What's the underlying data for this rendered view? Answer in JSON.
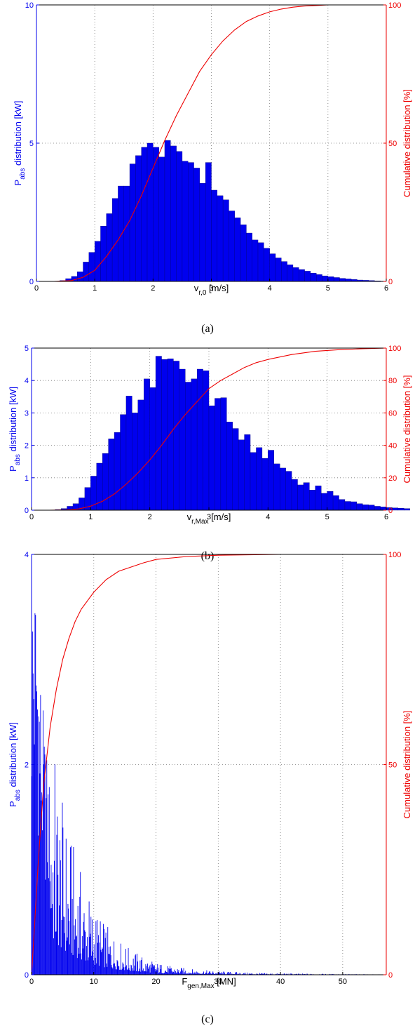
{
  "chart_data": [
    {
      "type": "bar",
      "caption": "(a)",
      "x_ticks": [
        "0",
        "1",
        "2",
        "3",
        "4",
        "5",
        "6"
      ],
      "xlim": [
        0,
        6
      ],
      "ylim_left": [
        0,
        10
      ],
      "y_ticks_left": [
        "0",
        "5",
        "10"
      ],
      "ylim_right": [
        0,
        100
      ],
      "y_ticks_right": [
        "0",
        "50",
        "100"
      ],
      "xlabel": {
        "main": "v",
        "sub": "r,0",
        "unit": " [m/s]"
      },
      "ylabel_left": {
        "main": "P",
        "sub": "abs",
        "rest": " distribution [kW]"
      },
      "ylabel_right": "Cumulative distribution [%]",
      "grid": true,
      "bar_color": "#0000ee",
      "cdf_color": "#ee0000",
      "bin_width": 0.1,
      "bin_start": 0.4,
      "values": [
        0.03,
        0.1,
        0.18,
        0.35,
        0.7,
        1.05,
        1.45,
        2.0,
        2.45,
        3.0,
        3.45,
        3.45,
        4.25,
        4.55,
        4.85,
        5.0,
        4.85,
        4.5,
        5.1,
        4.9,
        4.7,
        4.35,
        4.3,
        4.1,
        3.55,
        4.3,
        3.3,
        3.1,
        2.95,
        2.55,
        2.3,
        2.05,
        1.75,
        1.5,
        1.4,
        1.2,
        1.0,
        0.85,
        0.72,
        0.6,
        0.5,
        0.43,
        0.37,
        0.3,
        0.25,
        0.2,
        0.17,
        0.14,
        0.11,
        0.09,
        0.07,
        0.05,
        0.04,
        0.03,
        0.02,
        0.01
      ],
      "cdf": {
        "x": [
          0.3,
          0.6,
          0.8,
          1.0,
          1.2,
          1.4,
          1.6,
          1.8,
          2.0,
          2.2,
          2.4,
          2.6,
          2.8,
          3.0,
          3.2,
          3.4,
          3.6,
          3.8,
          4.0,
          4.2,
          4.4,
          4.6,
          4.8,
          5.0,
          5.5,
          6.0
        ],
        "y": [
          0,
          0.3,
          1.5,
          4,
          9,
          15,
          22,
          31,
          41,
          51,
          60,
          68,
          76,
          82,
          87,
          91,
          94,
          96,
          97.5,
          98.5,
          99.2,
          99.6,
          99.8,
          100,
          100,
          100
        ]
      }
    },
    {
      "type": "bar",
      "caption": "(b)",
      "x_ticks": [
        "0",
        "1",
        "2",
        "3",
        "4",
        "5",
        "6"
      ],
      "xlim": [
        0,
        6
      ],
      "ylim_left": [
        0,
        5
      ],
      "y_ticks_left": [
        "0",
        "1",
        "2",
        "3",
        "4",
        "5"
      ],
      "ylim_right": [
        0,
        100
      ],
      "y_ticks_right": [
        "0",
        "20",
        "40",
        "60",
        "80",
        "100"
      ],
      "xlabel": {
        "main": "v",
        "sub": "r,Max",
        "unit": " [m/s]"
      },
      "ylabel_left": {
        "main": "P",
        "sub": "abs",
        "rest": " distribution [kW]"
      },
      "ylabel_right": "Cumulative distribution [%]",
      "grid": true,
      "bar_color": "#0000ee",
      "cdf_color": "#ee0000",
      "bin_width": 0.1,
      "bin_start": 0.4,
      "values": [
        0.02,
        0.05,
        0.12,
        0.2,
        0.38,
        0.7,
        1.05,
        1.45,
        1.75,
        2.2,
        2.4,
        2.95,
        3.52,
        3.0,
        3.4,
        4.05,
        3.78,
        4.75,
        4.65,
        4.67,
        4.6,
        4.35,
        3.95,
        4.05,
        4.35,
        4.3,
        3.22,
        3.45,
        3.47,
        2.72,
        2.52,
        2.17,
        2.33,
        1.78,
        1.93,
        1.6,
        1.85,
        1.43,
        1.3,
        1.2,
        0.95,
        0.78,
        0.85,
        0.62,
        0.75,
        0.52,
        0.58,
        0.45,
        0.33,
        0.27,
        0.26,
        0.2,
        0.17,
        0.16,
        0.12,
        0.1,
        0.08,
        0.07,
        0.06,
        0.05
      ],
      "cdf": {
        "x": [
          0.3,
          0.6,
          0.8,
          1.0,
          1.2,
          1.4,
          1.6,
          1.8,
          2.0,
          2.2,
          2.4,
          2.6,
          2.8,
          3.0,
          3.2,
          3.4,
          3.6,
          3.8,
          4.0,
          4.4,
          4.8,
          5.2,
          5.6,
          6.0
        ],
        "y": [
          0,
          0.2,
          0.8,
          2.5,
          5.5,
          10,
          16,
          23,
          31,
          40,
          50,
          59,
          67,
          75,
          80,
          84,
          88,
          91,
          93,
          96,
          98,
          99,
          99.6,
          100
        ]
      }
    },
    {
      "type": "bar",
      "caption": "(c)",
      "x_ticks": [
        "0",
        "10",
        "20",
        "30",
        "40",
        "50"
      ],
      "xlim": [
        0,
        57
      ],
      "ylim_left": [
        0,
        4
      ],
      "y_ticks_left": [
        "0",
        "2",
        "4"
      ],
      "ylim_right": [
        0,
        100
      ],
      "y_ticks_right": [
        "0",
        "50",
        "100"
      ],
      "xlabel": {
        "main": "F",
        "sub": "gen,Max",
        "unit": " [MN]"
      },
      "ylabel_left": {
        "main": "P",
        "sub": "abs",
        "rest": " distribution [kW]"
      },
      "ylabel_right": "Cumulative distribution [%]",
      "grid": true,
      "bar_color": "#0000ee",
      "cdf_color": "#ee0000",
      "bin_width": 0.1,
      "bin_start": 0.0,
      "envelope": {
        "x": [
          0,
          0.3,
          0.6,
          0.8,
          1.0,
          1.3,
          1.6,
          2,
          2.5,
          3,
          3.5,
          4,
          5,
          6,
          7,
          8,
          9,
          10,
          12,
          14,
          16,
          18,
          20,
          22,
          24,
          26,
          28,
          30,
          33,
          36,
          40,
          45,
          50,
          57
        ],
        "y": [
          3.2,
          3.3,
          3.4,
          3.3,
          2.9,
          2.6,
          2.3,
          2.0,
          1.75,
          1.5,
          1.3,
          1.15,
          0.95,
          0.8,
          0.68,
          0.56,
          0.47,
          0.38,
          0.27,
          0.19,
          0.14,
          0.1,
          0.07,
          0.05,
          0.04,
          0.03,
          0.025,
          0.02,
          0.015,
          0.01,
          0.008,
          0.006,
          0.004,
          0.002
        ]
      },
      "cdf": {
        "x": [
          0,
          0.5,
          1,
          1.5,
          2,
          3,
          4,
          5,
          6,
          7,
          8,
          9,
          10,
          12,
          14,
          16,
          18,
          20,
          25,
          30,
          40,
          57
        ],
        "y": [
          0,
          12,
          25,
          36,
          46,
          59,
          68,
          75,
          80,
          84,
          87,
          89,
          91,
          94,
          96,
          97,
          98,
          98.8,
          99.5,
          99.8,
          100,
          100
        ]
      }
    }
  ]
}
